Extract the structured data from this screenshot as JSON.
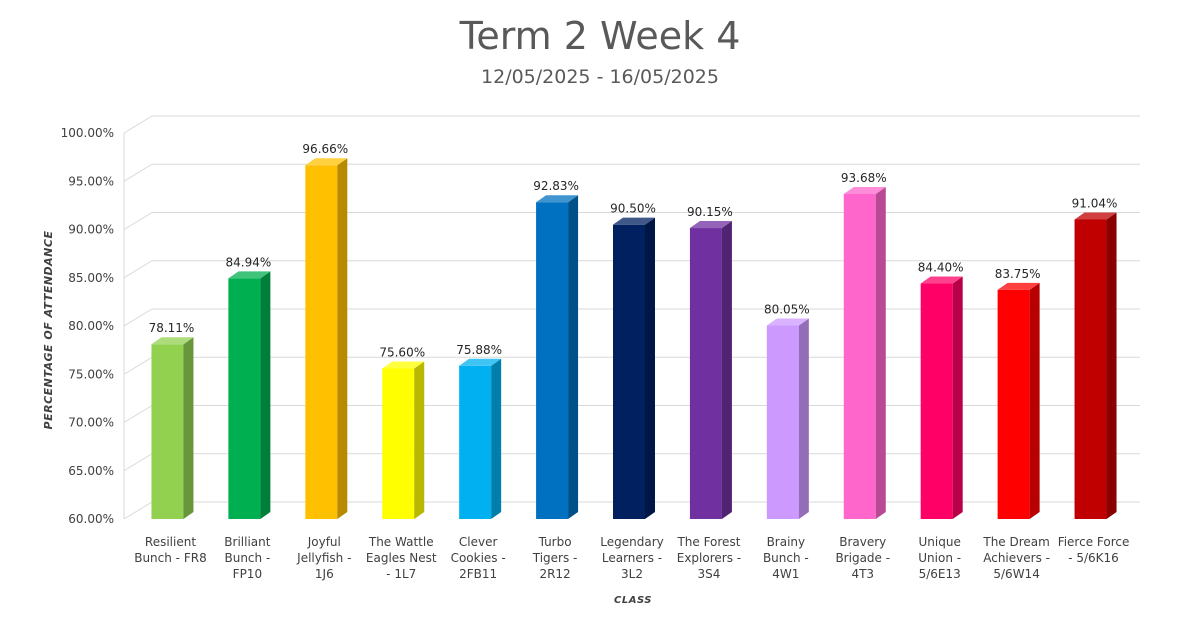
{
  "chart_data": {
    "type": "bar",
    "title": "Term 2 Week 4",
    "subtitle": "12/05/2025 - 16/05/2025",
    "xlabel": "CLASS",
    "ylabel": "PERCENTAGE OF ATTENDANCE",
    "ylim": [
      60,
      100
    ],
    "yticks": [
      "60.00%",
      "65.00%",
      "70.00%",
      "75.00%",
      "80.00%",
      "85.00%",
      "90.00%",
      "95.00%",
      "100.00%"
    ],
    "grid": true,
    "categories": [
      [
        "Resilient",
        "Bunch - FR8"
      ],
      [
        "Brilliant",
        "Bunch -",
        "FP10"
      ],
      [
        "Joyful",
        "Jellyfish -",
        "1J6"
      ],
      [
        "The Wattle",
        "Eagles Nest",
        "- 1L7"
      ],
      [
        "Clever",
        "Cookies -",
        "2FB11"
      ],
      [
        "Turbo",
        "Tigers -",
        "2R12"
      ],
      [
        "Legendary",
        "Learners -",
        "3L2"
      ],
      [
        "The Forest",
        "Explorers -",
        "3S4"
      ],
      [
        "Brainy",
        "Bunch -",
        "4W1"
      ],
      [
        "Bravery",
        "Brigade -",
        "4T3"
      ],
      [
        "Unique",
        "Union -",
        "5/6E13"
      ],
      [
        "The Dream",
        "Achievers -",
        "5/6W14"
      ],
      [
        "Fierce Force",
        "- 5/6K16"
      ]
    ],
    "values": [
      78.11,
      84.94,
      96.66,
      75.6,
      75.88,
      92.83,
      90.5,
      90.15,
      80.05,
      93.68,
      84.4,
      83.75,
      91.04
    ],
    "value_labels": [
      "78.11%",
      "84.94%",
      "96.66%",
      "75.60%",
      "75.88%",
      "92.83%",
      "90.50%",
      "90.15%",
      "80.05%",
      "93.68%",
      "84.40%",
      "83.75%",
      "91.04%"
    ],
    "colors": [
      "#92d050",
      "#00b050",
      "#ffc000",
      "#ffff00",
      "#00b0f0",
      "#0070c0",
      "#002060",
      "#7030a0",
      "#cc99ff",
      "#ff66cc",
      "#ff0066",
      "#ff0000",
      "#c00000"
    ]
  }
}
